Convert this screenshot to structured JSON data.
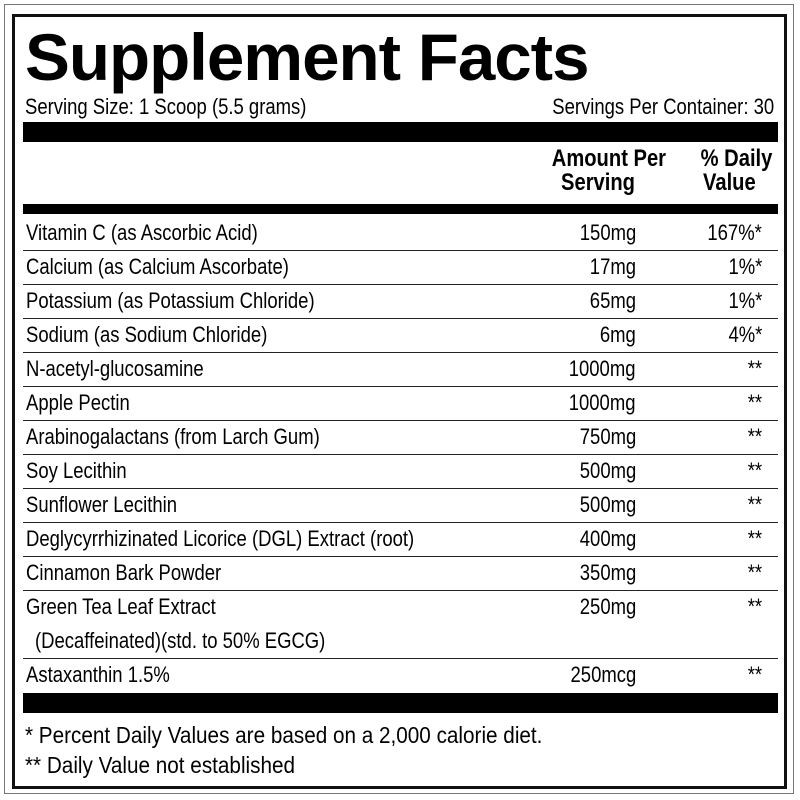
{
  "title": "Supplement Facts",
  "serving_size": "Serving Size: 1 Scoop (5.5 grams)",
  "servings_per_container": "Servings Per Container: 30",
  "header": {
    "amount_line1": "Amount Per",
    "amount_line2": "Serving",
    "dv_line1": "% Daily",
    "dv_line2": "Value"
  },
  "rows": [
    {
      "name": "Vitamin C (as Ascorbic Acid)",
      "amount": "150mg",
      "dv": "167%*"
    },
    {
      "name": "Calcium (as Calcium Ascorbate)",
      "amount": "17mg",
      "dv": "1%*"
    },
    {
      "name": "Potassium (as Potassium Chloride)",
      "amount": "65mg",
      "dv": "1%*"
    },
    {
      "name": "Sodium (as Sodium Chloride)",
      "amount": "6mg",
      "dv": "4%*"
    },
    {
      "name": "N-acetyl-glucosamine",
      "amount": "1000mg",
      "dv": "**"
    },
    {
      "name": "Apple Pectin",
      "amount": "1000mg",
      "dv": "**"
    },
    {
      "name": "Arabinogalactans (from Larch Gum)",
      "amount": "750mg",
      "dv": "**"
    },
    {
      "name": "Soy Lecithin",
      "amount": "500mg",
      "dv": "**"
    },
    {
      "name": "Sunflower Lecithin",
      "amount": "500mg",
      "dv": "**"
    },
    {
      "name": "Deglycyrrhizinated Licorice (DGL) Extract (root)",
      "amount": "400mg",
      "dv": "**"
    },
    {
      "name": "Cinnamon Bark Powder",
      "amount": "350mg",
      "dv": "**"
    },
    {
      "name": "Green Tea Leaf Extract",
      "name_line2": "(Decaffeinated)(std. to 50% EGCG)",
      "amount": "250mg",
      "dv": "**"
    },
    {
      "name": "Astaxanthin 1.5%",
      "amount": "250mcg",
      "dv": "**"
    }
  ],
  "footnotes": [
    "* Percent Daily Values are based on a 2,000 calorie diet.",
    "** Daily Value not established"
  ]
}
